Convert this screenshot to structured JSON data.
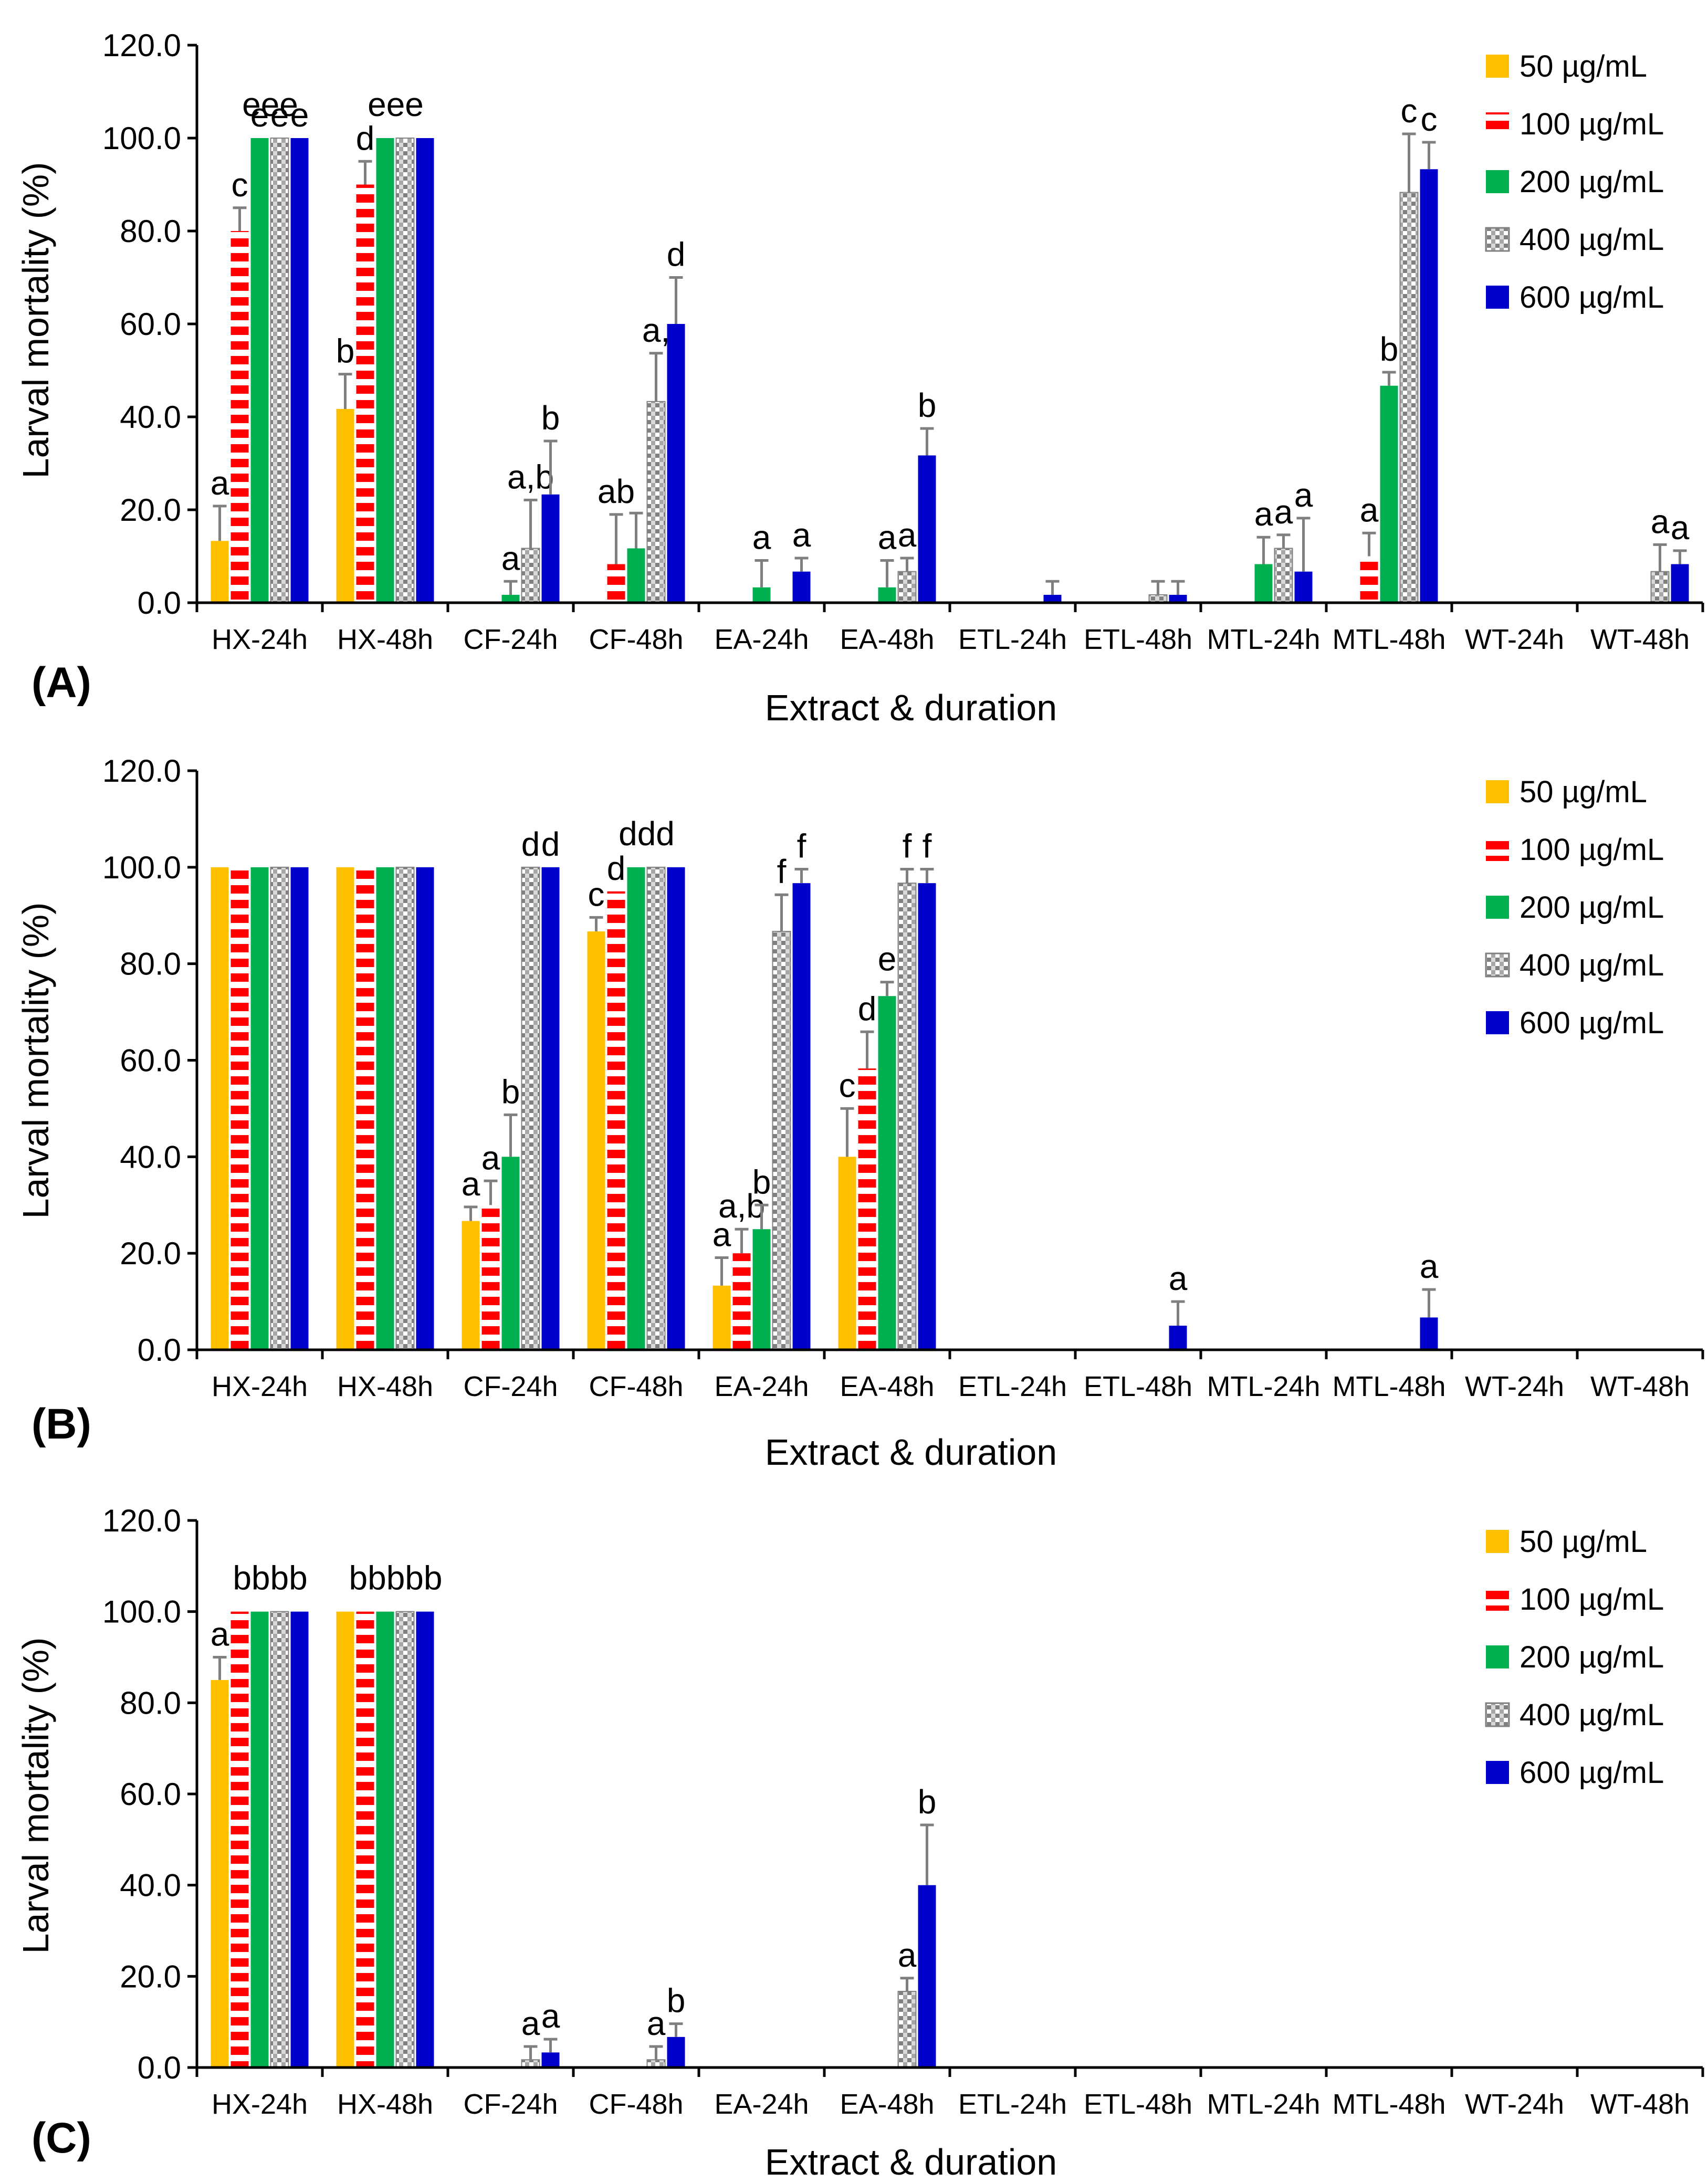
{
  "colors": {
    "50 µg/mL": "#ffc000",
    "100 µg/mL": "#ff0000",
    "200 µg/mL": "#00b050",
    "400 µg/mL": "#808080",
    "600 µg/mL": "#0000cc",
    "axis": "#000000",
    "error_bar": "#7f7f7f"
  },
  "chart_data": [
    {
      "type": "bar",
      "panel_label": "(A)",
      "xlabel": "Extract  & duration",
      "ylabel": "Larval mortality (%)",
      "ylim": [
        0,
        120
      ],
      "yticks": [
        "0.0",
        "20.0",
        "40.0",
        "60.0",
        "80.0",
        "100.0",
        "120.0"
      ],
      "grid": false,
      "legend_position": "top-right",
      "categories": [
        "HX-24h",
        "HX-48h",
        "CF-24h",
        "CF-48h",
        "EA-24h",
        "EA-48h",
        "ETL-24h",
        "ETL-48h",
        "MTL-24h",
        "MTL-48h",
        "WT-24h",
        "WT-48h"
      ],
      "series": [
        {
          "name": "50 µg/mL",
          "pattern": "solid",
          "values": [
            13.3,
            41.7,
            0,
            0,
            0,
            0,
            0,
            0,
            0,
            0,
            0,
            0
          ],
          "errors": [
            7.5,
            7.5,
            0,
            0,
            0,
            0,
            0,
            0,
            0,
            0,
            0,
            0
          ],
          "letters": [
            "a",
            "b",
            "",
            "",
            "",
            "",
            "",
            "",
            "",
            "",
            "",
            ""
          ]
        },
        {
          "name": "100 µg/mL",
          "pattern": "horizontal-dash",
          "values": [
            80,
            90,
            0,
            8.3,
            0,
            0,
            0,
            0,
            0,
            10,
            0,
            0
          ],
          "errors": [
            5,
            5,
            0,
            10.7,
            0,
            0,
            0,
            0,
            0,
            5,
            0,
            0
          ],
          "letters": [
            "c",
            "d",
            "",
            "ab",
            "",
            "",
            "",
            "",
            "",
            "a",
            "",
            ""
          ]
        },
        {
          "name": "200 µg/mL",
          "pattern": "solid",
          "values": [
            100,
            100,
            1.7,
            11.7,
            3.3,
            3.3,
            0,
            0,
            8.3,
            46.7,
            0,
            0
          ],
          "errors": [
            0,
            0,
            2.9,
            7.6,
            5.8,
            5.8,
            0,
            0,
            5.8,
            2.9,
            0,
            0
          ],
          "letters": [
            "e",
            "",
            "a",
            "",
            "a",
            "a",
            "",
            "",
            "a",
            "b",
            "",
            ""
          ]
        },
        {
          "name": "400 µg/mL",
          "pattern": "dotted-grid",
          "values": [
            100,
            100,
            11.7,
            43.3,
            0,
            6.7,
            0,
            1.7,
            11.7,
            88.3,
            0,
            6.7
          ],
          "errors": [
            0,
            0,
            10.4,
            10.4,
            0,
            2.9,
            0,
            2.9,
            2.9,
            12.6,
            0,
            5.8
          ],
          "letters": [
            "e",
            "",
            "a,b",
            "a,",
            "",
            "a",
            "",
            "",
            "a",
            "c",
            "",
            "a"
          ]
        },
        {
          "name": "600 µg/mL",
          "pattern": "solid",
          "values": [
            100,
            100,
            23.3,
            60,
            6.7,
            31.7,
            1.7,
            1.7,
            6.7,
            93.3,
            0,
            8.3
          ],
          "errors": [
            0,
            0,
            11.5,
            10,
            2.9,
            5.8,
            2.9,
            2.9,
            11.5,
            5.8,
            0,
            2.9
          ],
          "letters": [
            "e",
            "",
            "b",
            "d",
            "a",
            "b",
            "",
            "",
            "a",
            "c",
            "",
            "a"
          ]
        }
      ],
      "group_labels": [
        {
          "category": "HX-24h",
          "text": "eee"
        },
        {
          "category": "HX-48h",
          "text": "eee"
        }
      ]
    },
    {
      "type": "bar",
      "panel_label": "(B)",
      "xlabel": "Extract  & duration",
      "ylabel": "Larval mortality (%)",
      "ylim": [
        0,
        120
      ],
      "yticks": [
        "0.0",
        "20.0",
        "40.0",
        "60.0",
        "80.0",
        "100.0",
        "120.0"
      ],
      "grid": false,
      "legend_position": "top-right",
      "categories": [
        "HX-24h",
        "HX-48h",
        "CF-24h",
        "CF-48h",
        "EA-24h",
        "EA-48h",
        "ETL-24h",
        "ETL-48h",
        "MTL-24h",
        "MTL-48h",
        "WT-24h",
        "WT-48h"
      ],
      "series": [
        {
          "name": "50 µg/mL",
          "pattern": "solid",
          "values": [
            100,
            100,
            26.7,
            86.7,
            13.3,
            40,
            0,
            0,
            0,
            0,
            0,
            0
          ],
          "errors": [
            0,
            0,
            2.9,
            2.9,
            5.8,
            10,
            0,
            0,
            0,
            0,
            0,
            0
          ],
          "letters": [
            "",
            "",
            "a",
            "c",
            "a",
            "c",
            "",
            "",
            "",
            "",
            "",
            ""
          ]
        },
        {
          "name": "100 µg/mL",
          "pattern": "horizontal-dash",
          "values": [
            100,
            100,
            30,
            95,
            20,
            58.3,
            0,
            0,
            0,
            0,
            0,
            0
          ],
          "errors": [
            0,
            0,
            5,
            0,
            5,
            7.6,
            0,
            0,
            0,
            0,
            0,
            0
          ],
          "letters": [
            "",
            "",
            "a",
            "d",
            "a,b",
            "d",
            "",
            "",
            "",
            "",
            "",
            ""
          ]
        },
        {
          "name": "200 µg/mL",
          "pattern": "solid",
          "values": [
            100,
            100,
            40,
            100,
            25,
            73.3,
            0,
            0,
            0,
            0,
            0,
            0
          ],
          "errors": [
            0,
            0,
            8.7,
            0,
            5,
            2.9,
            0,
            0,
            0,
            0,
            0,
            0
          ],
          "letters": [
            "",
            "",
            "b",
            "",
            "b",
            "e",
            "",
            "",
            "",
            "",
            "",
            ""
          ]
        },
        {
          "name": "400 µg/mL",
          "pattern": "dotted-grid",
          "values": [
            100,
            100,
            100,
            100,
            86.7,
            96.7,
            0,
            0,
            0,
            0,
            0,
            0
          ],
          "errors": [
            0,
            0,
            0,
            0,
            7.6,
            2.9,
            0,
            0,
            0,
            0,
            0,
            0
          ],
          "letters": [
            "",
            "",
            "d",
            "",
            "f",
            "f",
            "",
            "",
            "",
            "",
            "",
            ""
          ]
        },
        {
          "name": "600 µg/mL",
          "pattern": "solid",
          "values": [
            100,
            100,
            100,
            100,
            96.7,
            96.7,
            0,
            5,
            0,
            6.7,
            0,
            0
          ],
          "errors": [
            0,
            0,
            0,
            0,
            2.9,
            2.9,
            0,
            5,
            0,
            5.8,
            0,
            0
          ],
          "letters": [
            "",
            "",
            "d",
            "",
            "f",
            "f",
            "",
            "a",
            "",
            "a",
            "",
            ""
          ]
        }
      ],
      "group_labels": [
        {
          "category": "CF-48h",
          "text": "ddd"
        }
      ]
    },
    {
      "type": "bar",
      "panel_label": "(C)",
      "xlabel": "Extract  & duration",
      "ylabel": "Larval mortality (%)",
      "ylim": [
        0,
        120
      ],
      "yticks": [
        "0.0",
        "20.0",
        "40.0",
        "60.0",
        "80.0",
        "100.0",
        "120.0"
      ],
      "grid": false,
      "legend_position": "top-right",
      "categories": [
        "HX-24h",
        "HX-48h",
        "CF-24h",
        "CF-48h",
        "EA-24h",
        "EA-48h",
        "ETL-24h",
        "ETL-48h",
        "MTL-24h",
        "MTL-48h",
        "WT-24h",
        "WT-48h"
      ],
      "series": [
        {
          "name": "50 µg/mL",
          "pattern": "solid",
          "values": [
            85,
            100,
            0,
            0,
            0,
            0,
            0,
            0,
            0,
            0,
            0,
            0
          ],
          "errors": [
            5,
            0,
            0,
            0,
            0,
            0,
            0,
            0,
            0,
            0,
            0,
            0
          ],
          "letters": [
            "a",
            "",
            "",
            "",
            "",
            "",
            "",
            "",
            "",
            "",
            "",
            ""
          ]
        },
        {
          "name": "100 µg/mL",
          "pattern": "horizontal-dash",
          "values": [
            100,
            100,
            0,
            0,
            0,
            0,
            0,
            0,
            0,
            0,
            0,
            0
          ],
          "errors": [
            0,
            0,
            0,
            0,
            0,
            0,
            0,
            0,
            0,
            0,
            0,
            0
          ],
          "letters": [
            "",
            "",
            "",
            "",
            "",
            "",
            "",
            "",
            "",
            "",
            "",
            ""
          ]
        },
        {
          "name": "200 µg/mL",
          "pattern": "solid",
          "values": [
            100,
            100,
            0,
            0,
            0,
            0,
            0,
            0,
            0,
            0,
            0,
            0
          ],
          "errors": [
            0,
            0,
            0,
            0,
            0,
            0,
            0,
            0,
            0,
            0,
            0,
            0
          ],
          "letters": [
            "",
            "",
            "",
            "",
            "",
            "",
            "",
            "",
            "",
            "",
            "",
            ""
          ]
        },
        {
          "name": "400 µg/mL",
          "pattern": "dotted-grid",
          "values": [
            100,
            100,
            1.7,
            1.7,
            0,
            16.7,
            0,
            0,
            0,
            0,
            0,
            0
          ],
          "errors": [
            0,
            0,
            2.9,
            2.9,
            0,
            2.9,
            0,
            0,
            0,
            0,
            0,
            0
          ],
          "letters": [
            "",
            "",
            "a",
            "a",
            "",
            "a",
            "",
            "",
            "",
            "",
            "",
            ""
          ]
        },
        {
          "name": "600 µg/mL",
          "pattern": "solid",
          "values": [
            100,
            100,
            3.3,
            6.7,
            0,
            40,
            0,
            0,
            0,
            0,
            0,
            0
          ],
          "errors": [
            0,
            0,
            2.9,
            2.9,
            0,
            13.2,
            0,
            0,
            0,
            0,
            0,
            0
          ],
          "letters": [
            "",
            "",
            "a",
            "b",
            "",
            "b",
            "",
            "",
            "",
            "",
            "",
            ""
          ]
        }
      ],
      "group_labels": [
        {
          "category": "HX-24h",
          "text": "bbbb"
        },
        {
          "category": "HX-48h",
          "text": "bbbbb"
        }
      ]
    }
  ]
}
